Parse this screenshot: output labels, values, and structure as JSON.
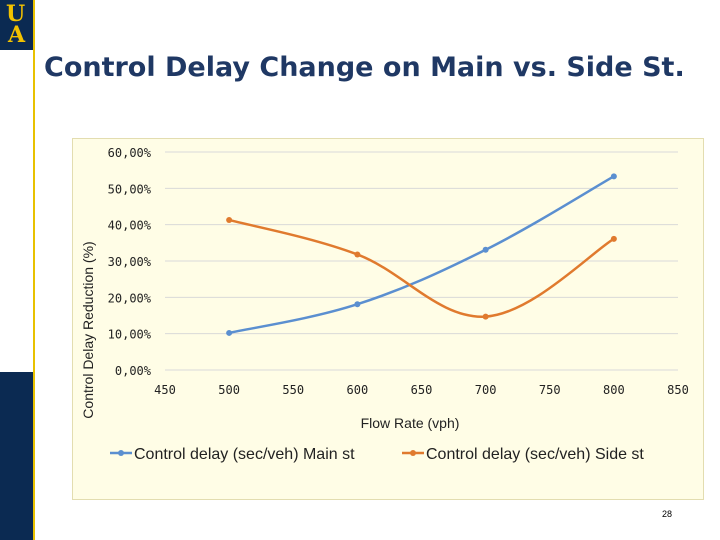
{
  "slide": {
    "logo_top": "U",
    "logo_bottom": "A",
    "title": "Control Delay Change on Main vs. Side St.",
    "slide_number": "28"
  },
  "chart_data": {
    "type": "line",
    "title": "",
    "xlabel": "Flow Rate (vph)",
    "ylabel": "Control Delay Reduction (%)",
    "xlim": [
      450,
      850
    ],
    "ylim": [
      0,
      60
    ],
    "x_ticks": [
      "450",
      "500",
      "550",
      "600",
      "650",
      "700",
      "750",
      "800",
      "850"
    ],
    "y_ticks": [
      "0,00%",
      "10,00%",
      "20,00%",
      "30,00%",
      "40,00%",
      "50,00%",
      "60,00%"
    ],
    "grid": "horizontal",
    "legend_position": "bottom",
    "x": [
      500,
      600,
      700,
      800
    ],
    "series": [
      {
        "name": "Control delay (sec/veh) Main st",
        "color": "#5b8fd0",
        "values": [
          10.2,
          18.1,
          33.1,
          53.3
        ]
      },
      {
        "name": "Control delay (sec/veh) Side st",
        "color": "#e07a2e",
        "values": [
          41.3,
          31.8,
          14.7,
          36.1
        ]
      }
    ]
  }
}
